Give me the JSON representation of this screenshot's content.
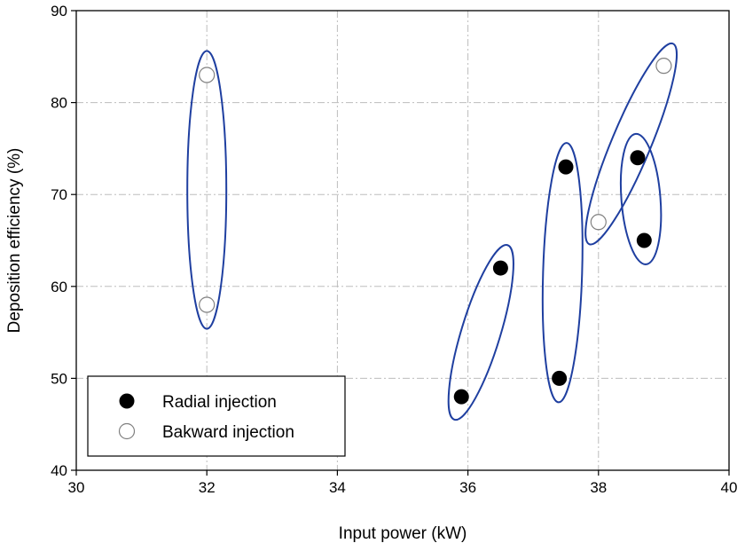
{
  "chart_data": {
    "type": "scatter",
    "xlabel": "Input power (kW)",
    "ylabel": "Deposition efficiency (%)",
    "xlim": [
      30,
      40
    ],
    "ylim": [
      40,
      90
    ],
    "x_ticks": [
      30,
      32,
      34,
      36,
      38,
      40
    ],
    "y_ticks": [
      40,
      50,
      60,
      70,
      80,
      90
    ],
    "grid": "dash-dot horizontal and vertical",
    "legend_position": "bottom-left",
    "series": [
      {
        "name": "Radial injection",
        "marker": "filled-circle",
        "points": [
          {
            "x": 35.9,
            "y": 48
          },
          {
            "x": 36.5,
            "y": 62
          },
          {
            "x": 37.4,
            "y": 50
          },
          {
            "x": 37.5,
            "y": 73
          },
          {
            "x": 38.6,
            "y": 74
          },
          {
            "x": 38.7,
            "y": 65
          }
        ]
      },
      {
        "name": "Bakward injection",
        "marker": "open-circle",
        "points": [
          {
            "x": 32.0,
            "y": 83
          },
          {
            "x": 32.0,
            "y": 58
          },
          {
            "x": 38.0,
            "y": 67
          },
          {
            "x": 39.0,
            "y": 84
          }
        ]
      }
    ],
    "groupings": [
      {
        "from": {
          "x": 32.0,
          "y": 58
        },
        "to": {
          "x": 32.0,
          "y": 83
        }
      },
      {
        "from": {
          "x": 35.9,
          "y": 48
        },
        "to": {
          "x": 36.5,
          "y": 62
        }
      },
      {
        "from": {
          "x": 37.4,
          "y": 50
        },
        "to": {
          "x": 37.5,
          "y": 73
        }
      },
      {
        "from": {
          "x": 38.0,
          "y": 67
        },
        "to": {
          "x": 39.0,
          "y": 84
        }
      },
      {
        "from": {
          "x": 38.7,
          "y": 65
        },
        "to": {
          "x": 38.6,
          "y": 74
        }
      }
    ],
    "colors": {
      "grouping_ellipse": "#1f3fa0",
      "grid": "#bdbdbd",
      "marker_fill": "#000000",
      "open_marker_stroke": "#808080"
    }
  }
}
